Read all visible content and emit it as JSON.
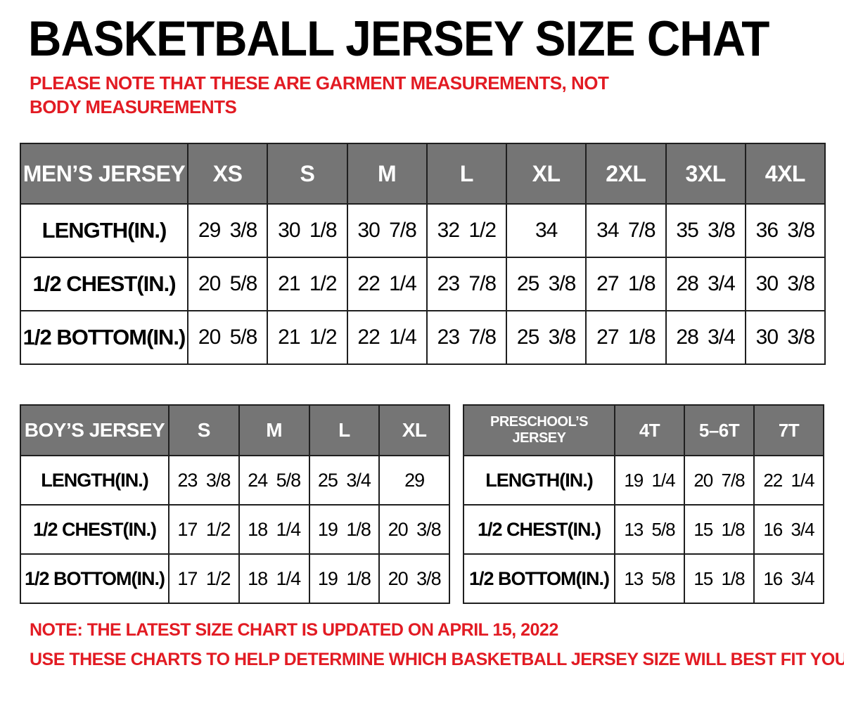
{
  "title": "BASKETBALL JERSEY SIZE CHAT",
  "disclaimer": "PLEASE NOTE THAT THESE ARE GARMENT MEASUREMENTS, NOT BODY MEASUREMENTS",
  "colors": {
    "accent_red": "#e21b23",
    "header_gray": "#757575",
    "border": "#1f1f1f"
  },
  "tables": [
    {
      "id": "mens",
      "header": "MEN’S JERSEY",
      "sizes": [
        "XS",
        "S",
        "M",
        "L",
        "XL",
        "2XL",
        "3XL",
        "4XL"
      ],
      "rows": [
        {
          "label": "LENGTH(IN.)",
          "values": [
            "29 3/8",
            "30 1/8",
            "30 7/8",
            "32 1/2",
            "34",
            "34 7/8",
            "35 3/8",
            "36 3/8"
          ]
        },
        {
          "label": "1/2  CHEST(IN.)",
          "values": [
            "20 5/8",
            "21 1/2",
            "22 1/4",
            "23 7/8",
            "25 3/8",
            "27 1/8",
            "28 3/4",
            "30 3/8"
          ]
        },
        {
          "label": "1/2  BOTTOM(IN.)",
          "values": [
            "20 5/8",
            "21 1/2",
            "22 1/4",
            "23 7/8",
            "25 3/8",
            "27 1/8",
            "28 3/4",
            "30 3/8"
          ]
        }
      ]
    },
    {
      "id": "boys",
      "header": "BOY’S JERSEY",
      "sizes": [
        "S",
        "M",
        "L",
        "XL"
      ],
      "rows": [
        {
          "label": "LENGTH(IN.)",
          "values": [
            "23 3/8",
            "24 5/8",
            "25 3/4",
            "29"
          ]
        },
        {
          "label": "1/2  CHEST(IN.)",
          "values": [
            "17 1/2",
            "18 1/4",
            "19 1/8",
            "20 3/8"
          ]
        },
        {
          "label": "1/2  BOTTOM(IN.)",
          "values": [
            "17 1/2",
            "18 1/4",
            "19 1/8",
            "20 3/8"
          ]
        }
      ]
    },
    {
      "id": "preschool",
      "header": "PRESCHOOL’S JERSEY",
      "sizes": [
        "4T",
        "5–6T",
        "7T"
      ],
      "rows": [
        {
          "label": "LENGTH(IN.)",
          "values": [
            "19 1/4",
            "20 7/8",
            "22 1/4"
          ]
        },
        {
          "label": "1/2  CHEST(IN.)",
          "values": [
            "13 5/8",
            "15 1/8",
            "16 3/4"
          ]
        },
        {
          "label": "1/2  BOTTOM(IN.)",
          "values": [
            "13 5/8",
            "15 1/8",
            "16 3/4"
          ]
        }
      ]
    }
  ],
  "notes": [
    "NOTE: THE LATEST SIZE CHART IS UPDATED ON APRIL 15, 2022",
    "USE THESE CHARTS TO HELP DETERMINE WHICH  BASKETBALL JERSEY  SIZE WILL BEST FIT YOU."
  ]
}
